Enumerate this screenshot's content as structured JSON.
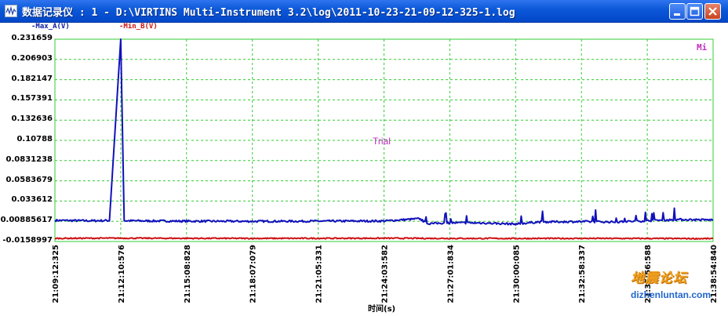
{
  "window": {
    "title": "数据记录仪 : 1 - D:\\VIRTINS Multi-Instrument 3.2\\log\\2011-10-23-21-09-12-325-1.log",
    "app_icon": "waveform-icon",
    "controls": [
      "minimize-icon",
      "maximize-icon",
      "close-icon"
    ]
  },
  "plot": {
    "mode_tag": "Mi",
    "trial_label": "Trial",
    "watermark": {
      "cn": "地震论坛",
      "url": "dizhenluntan.com"
    },
    "colors": {
      "background": "#ffffff",
      "frame": "#33cc33",
      "grid": "#33cc33",
      "series_a": "#1111bb",
      "series_b": "#cc1111",
      "mode_tag": "#c030c0"
    }
  },
  "chart_data": {
    "type": "line",
    "xlabel": "时间(s)",
    "ylabel": "",
    "title": "",
    "grid": true,
    "ylim": [
      -0.0158997,
      0.231659
    ],
    "y_ticks": [
      "0.231659",
      "0.206903",
      "0.182147",
      "0.157391",
      "0.132636",
      "0.10788",
      "0.0831238",
      "0.0583679",
      "0.033612",
      "0.00885617",
      "-0.0158997"
    ],
    "x_ticks": [
      "21:09:12:325",
      "21:12:10:576",
      "21:15:08:828",
      "21:18:07:079",
      "21:21:05:331",
      "21:24:03:582",
      "21:27:01:834",
      "21:30:00:085",
      "21:32:58:337",
      "21:35:56:588",
      "21:38:54:840"
    ],
    "series": [
      {
        "name": "-Max_A(V)",
        "color": "#1111bb",
        "points": [
          [
            "21:09:12:325",
            0.01
          ],
          [
            "21:10:50:000",
            0.0095
          ],
          [
            "21:11:40:000",
            0.0098
          ],
          [
            "21:12:10:576",
            0.231659
          ],
          [
            "21:12:20:000",
            0.0095
          ],
          [
            "21:15:08:828",
            0.009
          ],
          [
            "21:18:07:079",
            0.0088
          ],
          [
            "21:21:05:331",
            0.009
          ],
          [
            "21:24:03:582",
            0.0092
          ],
          [
            "21:25:40:000",
            0.012
          ],
          [
            "21:26:00:000",
            0.006
          ],
          [
            "21:27:01:834",
            0.007
          ],
          [
            "21:28:30:000",
            0.0068
          ],
          [
            "21:30:00:085",
            0.0055
          ],
          [
            "21:31:00:000",
            0.008
          ],
          [
            "21:32:58:337",
            0.0085
          ],
          [
            "21:34:30:000",
            0.008
          ],
          [
            "21:35:56:588",
            0.0095
          ],
          [
            "21:37:20:000",
            0.011
          ],
          [
            "21:38:54:840",
            0.0105
          ]
        ]
      },
      {
        "name": "-Min_B(V)",
        "color": "#cc1111",
        "points": [
          [
            "21:09:12:325",
            -0.012
          ],
          [
            "21:12:10:576",
            -0.0118
          ],
          [
            "21:15:08:828",
            -0.012
          ],
          [
            "21:18:07:079",
            -0.0121
          ],
          [
            "21:21:05:331",
            -0.012
          ],
          [
            "21:24:03:582",
            -0.0119
          ],
          [
            "21:27:01:834",
            -0.0121
          ],
          [
            "21:30:00:085",
            -0.0122
          ],
          [
            "21:32:58:337",
            -0.0121
          ],
          [
            "21:35:56:588",
            -0.0122
          ],
          [
            "21:38:54:840",
            -0.0124
          ]
        ]
      }
    ]
  }
}
